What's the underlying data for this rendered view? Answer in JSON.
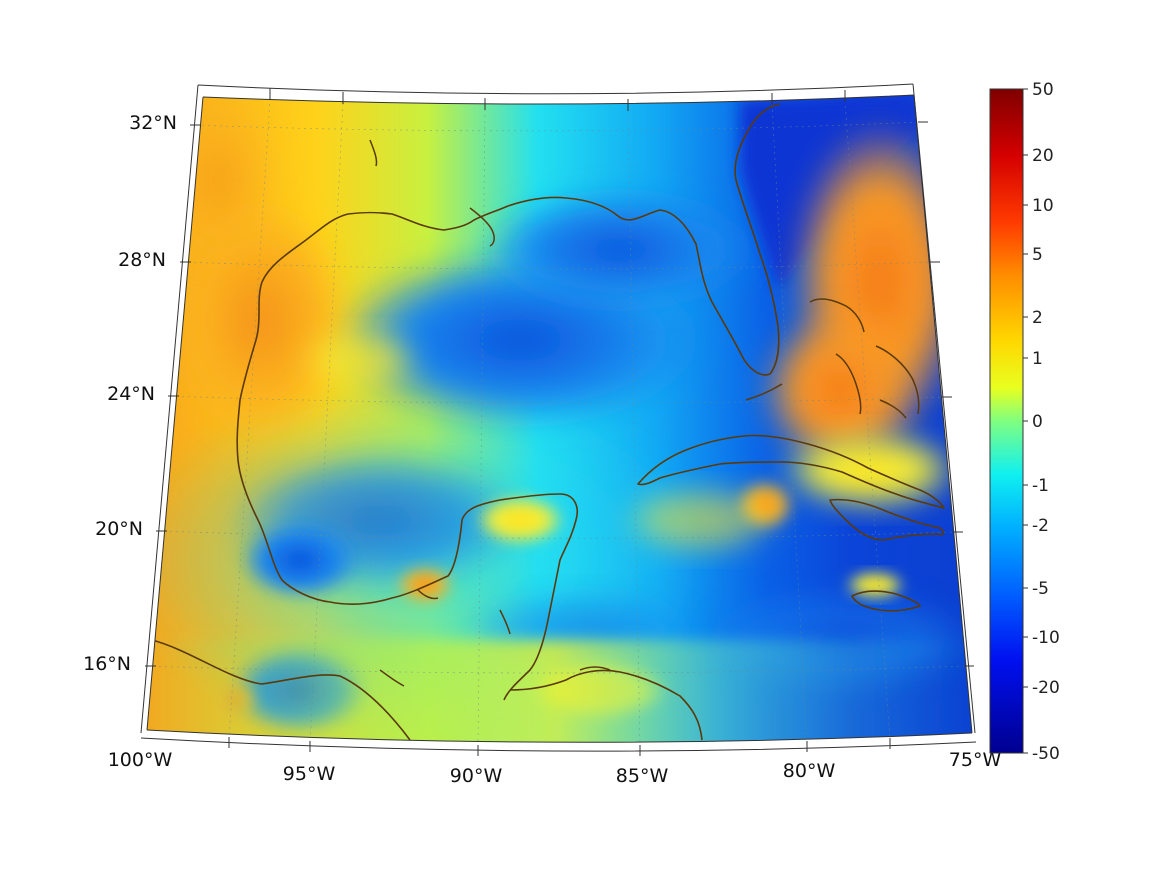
{
  "map": {
    "lat_labels": [
      "32°N",
      "28°N",
      "24°N",
      "20°N",
      "16°N"
    ],
    "lon_labels": [
      "100°W",
      "95°W",
      "90°W",
      "85°W",
      "80°W",
      "75°W"
    ]
  },
  "colorbar": {
    "tick_labels": [
      "50",
      "20",
      "10",
      "5",
      "2",
      "1",
      "0",
      "-1",
      "-2",
      "-5",
      "-10",
      "-20",
      "-50"
    ],
    "colors": [
      "#7f0000",
      "#ff0000",
      "#ff8000",
      "#ffff00",
      "#80ff80",
      "#00ffff",
      "#0080ff",
      "#0000ff",
      "#00008f"
    ]
  }
}
